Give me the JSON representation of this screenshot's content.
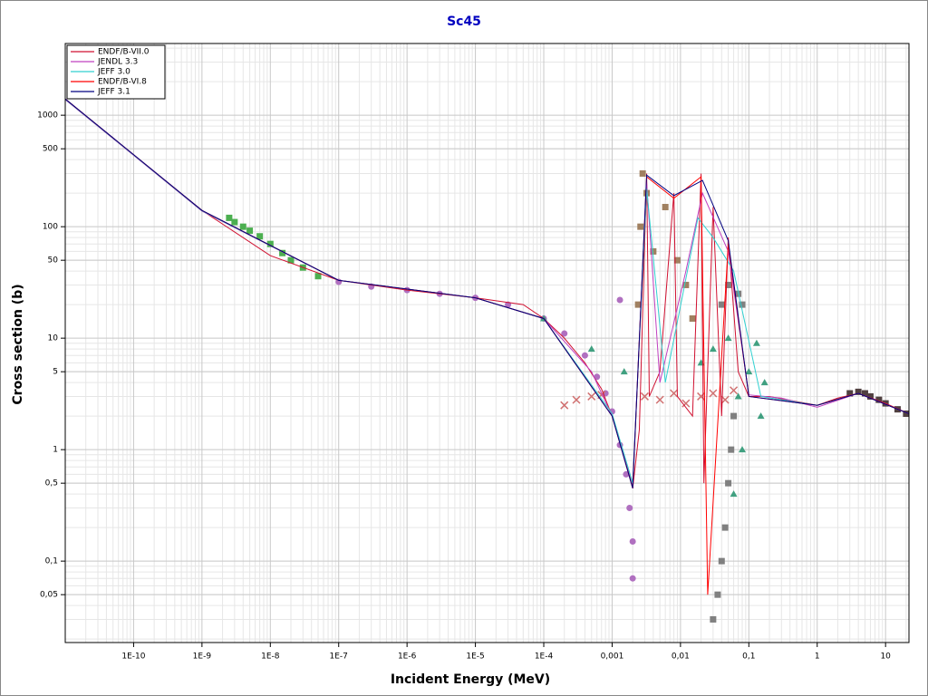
{
  "chart_data": {
    "type": "line",
    "title": "Sc45",
    "x_label": "Incident Energy (MeV)",
    "y_label": "Cross section (b)",
    "log_x": true,
    "log_y": true,
    "grid": true,
    "minor_grid": true,
    "legend": "upper left",
    "xlim": [
      1e-11,
      22
    ],
    "ylim": [
      0.0186,
      4400
    ],
    "xticks": [
      {
        "value": 1e-10,
        "label": "1E-10"
      },
      {
        "value": 1e-09,
        "label": "1E-9"
      },
      {
        "value": 1e-08,
        "label": "1E-8"
      },
      {
        "value": 1e-07,
        "label": "1E-7"
      },
      {
        "value": 1e-06,
        "label": "1E-6"
      },
      {
        "value": 1e-05,
        "label": "1E-5"
      },
      {
        "value": 0.0001,
        "label": "1E-4"
      },
      {
        "value": 0.001,
        "label": "0,001"
      },
      {
        "value": 0.01,
        "label": "0,01"
      },
      {
        "value": 0.1,
        "label": "0,1"
      },
      1,
      10
    ],
    "yticks": [
      1000,
      500,
      100,
      50,
      10,
      5,
      1,
      {
        "value": 0.5,
        "label": "0,5"
      },
      {
        "value": 0.1,
        "label": "0,1"
      },
      {
        "value": 0.05,
        "label": "0,05"
      }
    ],
    "series": [
      {
        "name": "ENDF/B-VII.0",
        "color": "#d01030",
        "x": [
          1e-11,
          1e-10,
          1e-09,
          1e-08,
          1e-07,
          1e-06,
          1e-05,
          5e-05,
          0.0001,
          0.0002,
          0.0004,
          0.0007,
          0.001,
          0.0015,
          0.002,
          0.0025,
          0.0032,
          0.0035,
          0.005,
          0.008,
          0.009,
          0.015,
          0.02,
          0.022,
          0.03,
          0.04,
          0.05,
          0.07,
          0.1,
          0.2,
          0.5,
          1,
          2,
          4,
          10,
          22
        ],
        "y": [
          1400,
          440,
          140,
          55,
          33,
          27,
          23,
          20,
          15,
          10,
          6,
          3.5,
          2,
          0.9,
          0.45,
          1.5,
          300,
          3,
          5,
          200,
          3,
          2,
          300,
          0.5,
          150,
          2,
          80,
          5,
          3,
          3,
          2.7,
          2.5,
          2.9,
          3.2,
          2.6,
          2.1
        ]
      },
      {
        "name": "JENDL 3.3",
        "color": "#c040c0",
        "x": [
          1e-11,
          1e-09,
          1e-07,
          1e-05,
          0.0001,
          0.0005,
          0.001,
          0.002,
          0.0032,
          0.005,
          0.012,
          0.021,
          0.05,
          0.1,
          0.3,
          1,
          4,
          22
        ],
        "y": [
          1380,
          138,
          33,
          23,
          15,
          5,
          2,
          0.5,
          250,
          4,
          40,
          200,
          60,
          3.1,
          2.9,
          2.4,
          3.2,
          2.1
        ]
      },
      {
        "name": "JEFF 3.0",
        "color": "#30d0d0",
        "x": [
          1e-11,
          1e-09,
          1e-07,
          1e-05,
          0.0001,
          0.001,
          0.002,
          0.0032,
          0.006,
          0.018,
          0.03,
          0.06,
          0.15,
          1,
          4,
          22
        ],
        "y": [
          1390,
          139,
          33,
          23,
          15,
          2.1,
          0.5,
          220,
          4,
          120,
          80,
          40,
          3,
          2.5,
          3.2,
          2.1
        ]
      },
      {
        "name": "ENDF/B-VI.8",
        "color": "#ff0000",
        "x": [
          1e-11,
          1e-09,
          1e-07,
          1e-05,
          0.0001,
          0.001,
          0.002,
          0.0032,
          0.008,
          0.02,
          0.025,
          0.05,
          0.1,
          1,
          4,
          22
        ],
        "y": [
          1400,
          140,
          33,
          23,
          15,
          2,
          0.45,
          280,
          180,
          280,
          0.05,
          70,
          3,
          2.5,
          3.2,
          2.1
        ]
      },
      {
        "name": "JEFF 3.1",
        "color": "#000080",
        "x": [
          1e-11,
          1e-09,
          1e-07,
          1e-05,
          0.0001,
          0.001,
          0.002,
          0.0032,
          0.008,
          0.021,
          0.05,
          0.1,
          1,
          4,
          22
        ],
        "y": [
          1400,
          140,
          33,
          23,
          15,
          2,
          0.45,
          290,
          190,
          260,
          75,
          3,
          2.5,
          3.2,
          2.1
        ]
      }
    ],
    "markers": [
      {
        "color": "#4caf50",
        "marker": "square",
        "x": [
          2.5e-09,
          3e-09,
          4e-09,
          5e-09,
          7e-09,
          1e-08,
          1.5e-08,
          2e-08,
          3e-08,
          5e-08
        ],
        "y": [
          120,
          110,
          100,
          92,
          82,
          70,
          58,
          50,
          43,
          36
        ]
      },
      {
        "color": "#b070c0",
        "marker": "circle",
        "x": [
          1e-07,
          3e-07,
          1e-06,
          3e-06,
          1e-05,
          3e-05,
          0.0001,
          0.0002,
          0.0004,
          0.0006,
          0.0008,
          0.001,
          0.0013,
          0.0016,
          0.0018,
          0.002,
          0.002,
          0.0013
        ],
        "y": [
          32,
          29,
          27,
          25,
          23,
          20,
          15,
          11,
          7,
          4.5,
          3.2,
          2.2,
          1.1,
          0.6,
          0.3,
          0.15,
          0.07,
          22
        ]
      },
      {
        "color": "#d07070",
        "marker": "x",
        "x": [
          0.0002,
          0.0003,
          0.0005,
          0.0007,
          0.003,
          0.005,
          0.008,
          0.012,
          0.02,
          0.03,
          0.045,
          0.06
        ],
        "y": [
          2.5,
          2.8,
          3.0,
          3.1,
          3.0,
          2.8,
          3.2,
          2.6,
          3.0,
          3.2,
          2.8,
          3.4
        ]
      },
      {
        "color": "#a08060",
        "marker": "square",
        "x": [
          0.0024,
          0.0026,
          0.0028,
          0.0032,
          0.004,
          0.006,
          0.009,
          0.012,
          0.015
        ],
        "y": [
          20,
          100,
          300,
          200,
          60,
          150,
          50,
          30,
          15
        ]
      },
      {
        "color": "#40a080",
        "marker": "triangle",
        "x": [
          0.0001,
          0.0005,
          0.0015,
          0.02,
          0.03,
          0.05,
          0.07,
          0.1,
          0.13,
          0.15,
          0.17,
          0.06,
          0.08
        ],
        "y": [
          15,
          8,
          5,
          6,
          8,
          10,
          3,
          5,
          9,
          2,
          4,
          0.4,
          1
        ]
      },
      {
        "color": "#808080",
        "marker": "square",
        "x": [
          0.03,
          0.035,
          0.04,
          0.045,
          0.05,
          0.055,
          0.06,
          0.04,
          0.05,
          0.07,
          0.08
        ],
        "y": [
          0.03,
          0.05,
          0.1,
          0.2,
          0.5,
          1,
          2,
          20,
          30,
          25,
          20
        ]
      },
      {
        "color": "#504040",
        "marker": "square",
        "x": [
          3,
          4,
          5,
          6,
          8,
          10,
          15,
          20
        ],
        "y": [
          3.2,
          3.3,
          3.2,
          3.0,
          2.8,
          2.6,
          2.3,
          2.1
        ]
      }
    ]
  }
}
